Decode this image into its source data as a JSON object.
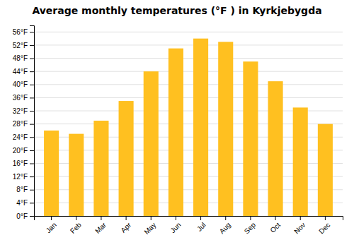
{
  "chart_data": {
    "type": "bar",
    "title": "Average monthly temperatures (°F ) in Kyrkjebygda",
    "categories": [
      "Jan",
      "Feb",
      "Mar",
      "Apr",
      "May",
      "Jun",
      "Jul",
      "Aug",
      "Sep",
      "Oct",
      "Nov",
      "Dec"
    ],
    "values": [
      26,
      25,
      29,
      35,
      44,
      51,
      54,
      53,
      47,
      41,
      33,
      28
    ],
    "color": "#FFC020",
    "ylim": [
      0,
      58
    ],
    "yticks": [
      {
        "value": 0,
        "label": "0°F"
      },
      {
        "value": 4,
        "label": "4°F"
      },
      {
        "value": 8,
        "label": "8°F"
      },
      {
        "value": 12,
        "label": "12°F"
      },
      {
        "value": 16,
        "label": "16°F"
      },
      {
        "value": 20,
        "label": "20°F"
      },
      {
        "value": 24,
        "label": "24°F"
      },
      {
        "value": 28,
        "label": "28°F"
      },
      {
        "value": 32,
        "label": "32°F"
      },
      {
        "value": 36,
        "label": "36°F"
      },
      {
        "value": 40,
        "label": "40°F"
      },
      {
        "value": 44,
        "label": "44°F"
      },
      {
        "value": 48,
        "label": "48°F"
      },
      {
        "value": 52,
        "label": "52°F"
      },
      {
        "value": 56,
        "label": "56°F"
      }
    ],
    "grid": true
  }
}
